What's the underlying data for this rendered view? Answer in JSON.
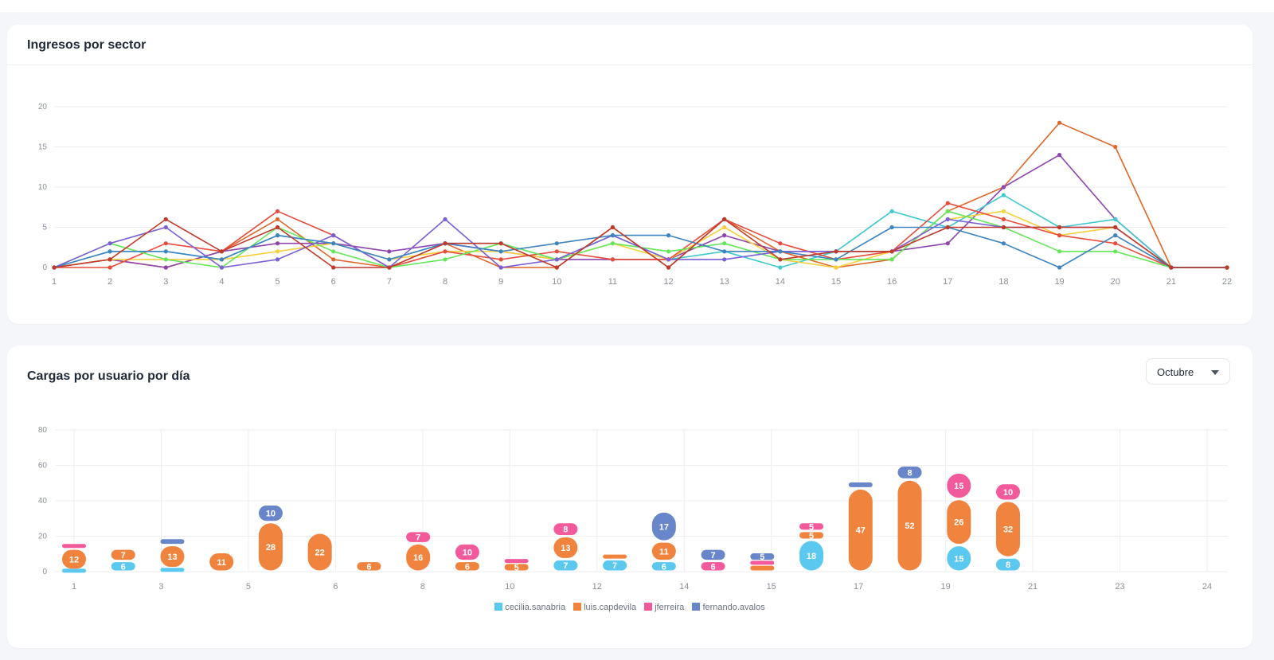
{
  "line_card": {
    "title": "Ingresos por sector"
  },
  "bar_card": {
    "title": "Cargas por usuario por día",
    "dropdown": {
      "selected": "Octubre"
    }
  },
  "chart_data": [
    {
      "type": "line",
      "title": "Ingresos por sector",
      "x": [
        1,
        2,
        3,
        4,
        5,
        6,
        7,
        8,
        9,
        10,
        11,
        12,
        13,
        14,
        15,
        16,
        17,
        18,
        19,
        20,
        21,
        22
      ],
      "ylim": [
        0,
        20
      ],
      "yticks": [
        0,
        5,
        10,
        15,
        20
      ],
      "grid": true,
      "series": [
        {
          "color": "#e0672a",
          "values": [
            0,
            1,
            0,
            2,
            6,
            1,
            0,
            3,
            0,
            0,
            5,
            0,
            6,
            2,
            0,
            1,
            7,
            10,
            18,
            15,
            0,
            0
          ]
        },
        {
          "color": "#8e44ad",
          "values": [
            0,
            1,
            0,
            2,
            3,
            3,
            2,
            3,
            2,
            1,
            1,
            1,
            4,
            2,
            2,
            2,
            3,
            10,
            14,
            6,
            0,
            0
          ]
        },
        {
          "color": "#3fc8cd",
          "values": [
            0,
            2,
            2,
            1,
            4,
            3,
            1,
            3,
            3,
            1,
            4,
            1,
            2,
            0,
            2,
            7,
            5,
            9,
            5,
            6,
            0,
            0
          ]
        },
        {
          "color": "#f5d13d",
          "values": [
            0,
            1,
            1,
            1,
            2,
            3,
            1,
            2,
            2,
            1,
            3,
            1,
            5,
            1,
            0,
            2,
            6,
            7,
            4,
            5,
            0,
            0
          ]
        },
        {
          "color": "#e74c3c",
          "values": [
            0,
            0,
            3,
            2,
            7,
            4,
            0,
            2,
            1,
            2,
            1,
            1,
            6,
            3,
            1,
            2,
            8,
            6,
            4,
            3,
            0,
            0
          ]
        },
        {
          "color": "#65e65a",
          "values": [
            0,
            3,
            1,
            0,
            5,
            2,
            0,
            1,
            3,
            1,
            3,
            2,
            3,
            1,
            1,
            1,
            7,
            5,
            2,
            2,
            0,
            0
          ]
        },
        {
          "color": "#7b5fd6",
          "values": [
            0,
            3,
            5,
            0,
            1,
            4,
            0,
            6,
            0,
            1,
            4,
            1,
            1,
            2,
            2,
            2,
            6,
            5,
            5,
            5,
            0,
            0
          ]
        },
        {
          "color": "#3d84c1",
          "values": [
            0,
            2,
            2,
            1,
            4,
            3,
            1,
            3,
            2,
            3,
            4,
            4,
            2,
            2,
            1,
            5,
            5,
            3,
            0,
            4,
            0,
            0
          ]
        },
        {
          "color": "#c0392b",
          "values": [
            0,
            1,
            6,
            2,
            5,
            0,
            0,
            3,
            3,
            0,
            5,
            0,
            6,
            1,
            2,
            2,
            5,
            5,
            5,
            5,
            0,
            0
          ]
        }
      ]
    },
    {
      "type": "bar",
      "stacked": true,
      "title": "Cargas por usuario por día",
      "categories": [
        "1",
        "2",
        "3",
        "4",
        "5",
        "6",
        "7",
        "8",
        "9",
        "10",
        "11",
        "12",
        "13",
        "14",
        "15",
        "16",
        "17",
        "18",
        "19",
        "20"
      ],
      "tick_labels": [
        "1",
        "3",
        "5",
        "6",
        "8",
        "10",
        "12",
        "14",
        "15",
        "17",
        "19",
        "21",
        "23",
        "24"
      ],
      "ylim": [
        0,
        80
      ],
      "yticks": [
        0,
        20,
        40,
        60,
        80
      ],
      "grid": true,
      "legend_position": "bottom",
      "series": [
        {
          "name": "cecilia.sanabria",
          "color": "#5bc8ef",
          "values": [
            1,
            6,
            2,
            0,
            0,
            0,
            0,
            0,
            0,
            0,
            7,
            7,
            6,
            0,
            0,
            18,
            0,
            0,
            15,
            8
          ]
        },
        {
          "name": "luis.capdevila",
          "color": "#f0843e",
          "values": [
            12,
            7,
            13,
            11,
            28,
            22,
            6,
            16,
            6,
            5,
            13,
            3,
            11,
            0,
            4,
            5,
            47,
            52,
            26,
            32
          ]
        },
        {
          "name": "jferreira",
          "color": "#f25a9c",
          "values": [
            3,
            0,
            0,
            0,
            0,
            0,
            0,
            7,
            10,
            2,
            8,
            0,
            0,
            6,
            2,
            5,
            0,
            0,
            15,
            10
          ]
        },
        {
          "name": "fernando.avalos",
          "color": "#6886c9",
          "values": [
            0,
            0,
            4,
            0,
            10,
            0,
            0,
            0,
            0,
            0,
            0,
            0,
            17,
            7,
            5,
            0,
            4,
            8,
            0,
            0
          ]
        }
      ]
    }
  ]
}
